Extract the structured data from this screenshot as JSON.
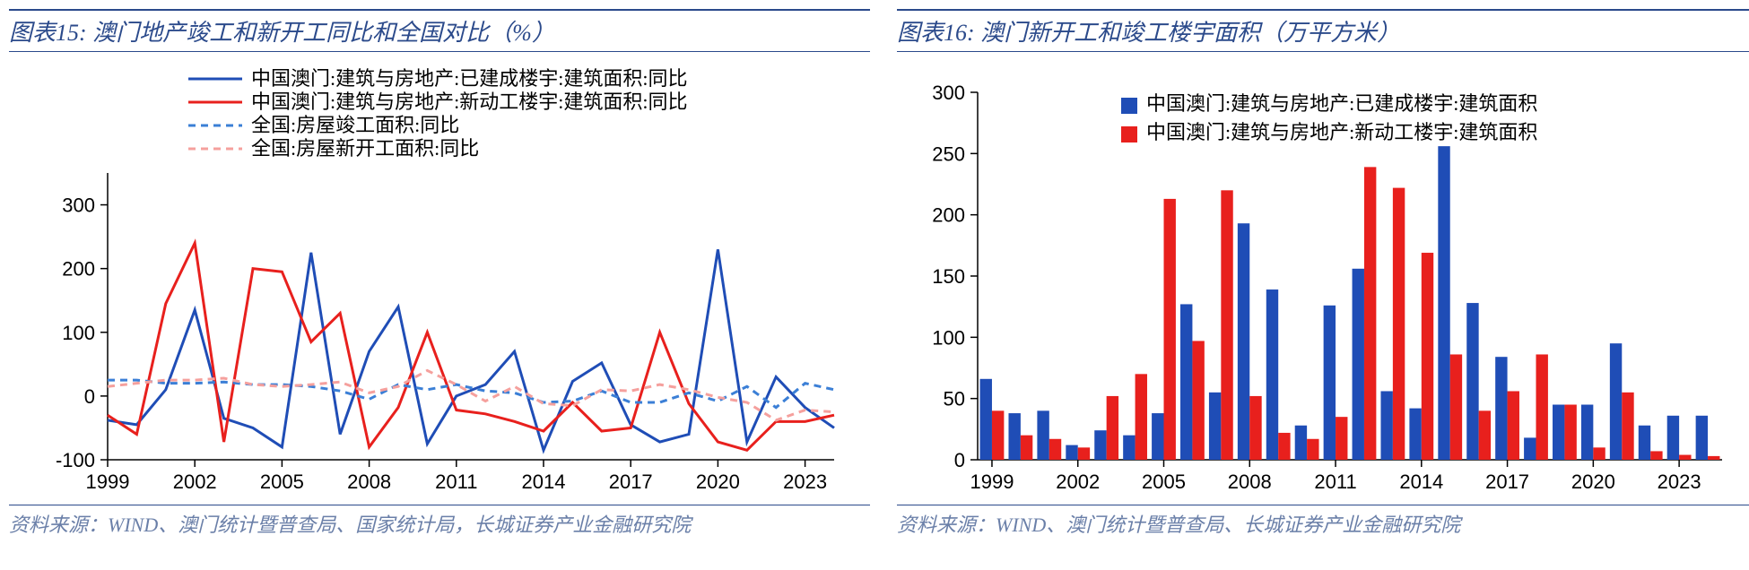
{
  "left_chart": {
    "type": "line",
    "title": "图表15:   澳门地产竣工和新开工同比和全国对比（%）",
    "source": "资料来源：WIND、澳门统计暨普查局、国家统计局，长城证券产业金融研究院",
    "legend": [
      "中国澳门:建筑与房地产:已建成楼宇:建筑面积:同比",
      "中国澳门:建筑与房地产:新动工楼宇:建筑面积:同比",
      "全国:房屋竣工面积:同比",
      "全国:房屋新开工面积:同比"
    ],
    "x_years": [
      1999,
      2000,
      2001,
      2002,
      2003,
      2004,
      2005,
      2006,
      2007,
      2008,
      2009,
      2010,
      2011,
      2012,
      2013,
      2014,
      2015,
      2016,
      2017,
      2018,
      2019,
      2020,
      2021,
      2022,
      2023,
      2024
    ],
    "x_tick_labels": [
      1999,
      2002,
      2005,
      2008,
      2011,
      2014,
      2017,
      2020,
      2023
    ],
    "ylim": [
      -100,
      350
    ],
    "ytick_step": 100,
    "series": [
      {
        "name": "macau_completed",
        "data": [
          -38,
          -45,
          10,
          135,
          -35,
          -50,
          -80,
          225,
          -60,
          70,
          140,
          -75,
          0,
          18,
          70,
          -85,
          23,
          52,
          -45,
          -72,
          -60,
          230,
          -72,
          30,
          -18,
          -50
        ],
        "color": "#1f4db6",
        "width": 3,
        "dash": ""
      },
      {
        "name": "macau_started",
        "data": [
          -30,
          -60,
          145,
          240,
          -72,
          200,
          195,
          85,
          130,
          -80,
          -18,
          100,
          -22,
          -28,
          -40,
          -55,
          -10,
          -55,
          -50,
          100,
          -12,
          -72,
          -85,
          -40,
          -40,
          -30
        ],
        "color": "#e8201d",
        "width": 3,
        "dash": ""
      },
      {
        "name": "national_completed",
        "data": [
          25,
          25,
          20,
          20,
          22,
          18,
          18,
          15,
          8,
          -5,
          18,
          10,
          18,
          8,
          5,
          -10,
          -8,
          8,
          -10,
          -10,
          5,
          -8,
          15,
          -18,
          20,
          10
        ],
        "color": "#3b7fd6",
        "width": 3,
        "dash": "8,6"
      },
      {
        "name": "national_started",
        "data": [
          15,
          20,
          25,
          25,
          28,
          18,
          15,
          18,
          22,
          5,
          15,
          40,
          18,
          -8,
          15,
          -12,
          -15,
          10,
          8,
          18,
          10,
          -2,
          -10,
          -38,
          -22,
          -25
        ],
        "color": "#f5a09d",
        "width": 3,
        "dash": "8,6"
      }
    ],
    "axis_color": "#000000",
    "background_color": "#ffffff",
    "text_color": "#000000",
    "title_fontsize": 26,
    "label_fontsize": 22
  },
  "right_chart": {
    "type": "bar",
    "title": "图表16:   澳门新开工和竣工楼宇面积（万平方米）",
    "source": "资料来源：WIND、澳门统计暨普查局、长城证券产业金融研究院",
    "legend": [
      "中国澳门:建筑与房地产:已建成楼宇:建筑面积",
      "中国澳门:建筑与房地产:新动工楼宇:建筑面积"
    ],
    "x_years": [
      1999,
      2000,
      2001,
      2002,
      2003,
      2004,
      2005,
      2006,
      2007,
      2008,
      2009,
      2010,
      2011,
      2012,
      2013,
      2014,
      2015,
      2016,
      2017,
      2018,
      2019,
      2020,
      2021,
      2022,
      2023,
      2024
    ],
    "x_tick_labels": [
      1999,
      2002,
      2005,
      2008,
      2011,
      2014,
      2017,
      2020,
      2023
    ],
    "ylim": [
      0,
      300
    ],
    "ytick_step": 50,
    "series": [
      {
        "name": "completed",
        "data": [
          66,
          38,
          40,
          12,
          24,
          20,
          38,
          127,
          55,
          193,
          139,
          28,
          126,
          156,
          56,
          42,
          256,
          128,
          84,
          18,
          45,
          45,
          95,
          28,
          36,
          36
        ],
        "color": "#1f4db6"
      },
      {
        "name": "started",
        "data": [
          40,
          20,
          17,
          10,
          52,
          70,
          213,
          97,
          220,
          52,
          22,
          17,
          35,
          239,
          222,
          169,
          86,
          40,
          56,
          86,
          45,
          10,
          55,
          7,
          4,
          3
        ],
        "color": "#e8201d"
      }
    ],
    "bar_width": 0.42,
    "axis_color": "#000000",
    "background_color": "#ffffff",
    "text_color": "#000000",
    "title_fontsize": 26,
    "label_fontsize": 22
  }
}
